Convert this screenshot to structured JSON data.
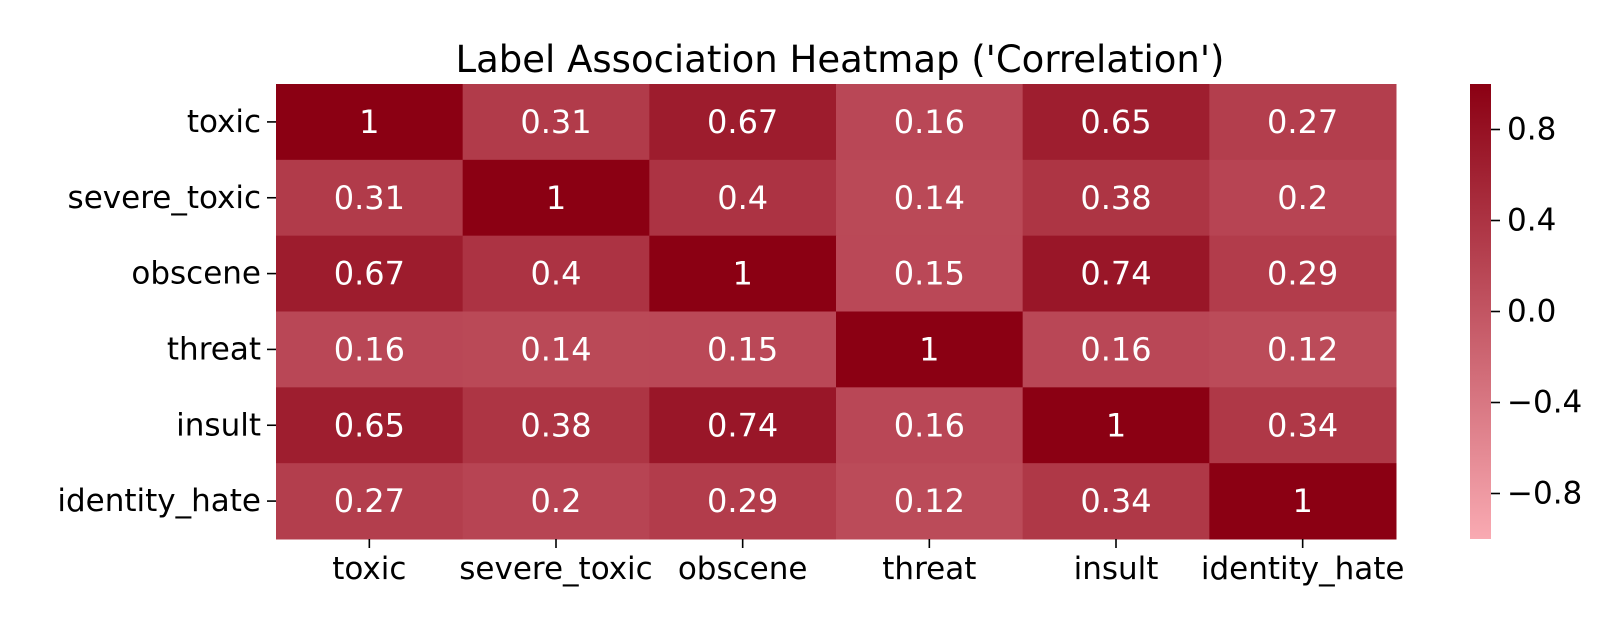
{
  "chart_data": {
    "type": "heatmap",
    "title": "Label Association Heatmap ('Correlation')",
    "xlabel": "",
    "ylabel": "",
    "x_categories": [
      "toxic",
      "severe_toxic",
      "obscene",
      "threat",
      "insult",
      "identity_hate"
    ],
    "y_categories": [
      "toxic",
      "severe_toxic",
      "obscene",
      "threat",
      "insult",
      "identity_hate"
    ],
    "values": [
      [
        1,
        0.31,
        0.67,
        0.16,
        0.65,
        0.27
      ],
      [
        0.31,
        1,
        0.4,
        0.14,
        0.38,
        0.2
      ],
      [
        0.67,
        0.4,
        1,
        0.15,
        0.74,
        0.29
      ],
      [
        0.16,
        0.14,
        0.15,
        1,
        0.16,
        0.12
      ],
      [
        0.65,
        0.38,
        0.74,
        0.16,
        1,
        0.34
      ],
      [
        0.27,
        0.2,
        0.29,
        0.12,
        0.34,
        1
      ]
    ],
    "cell_labels": [
      [
        "1",
        "0.31",
        "0.67",
        "0.16",
        "0.65",
        "0.27"
      ],
      [
        "0.31",
        "1",
        "0.4",
        "0.14",
        "0.38",
        "0.2"
      ],
      [
        "0.67",
        "0.4",
        "1",
        "0.15",
        "0.74",
        "0.29"
      ],
      [
        "0.16",
        "0.14",
        "0.15",
        "1",
        "0.16",
        "0.12"
      ],
      [
        "0.65",
        "0.38",
        "0.74",
        "0.16",
        "1",
        "0.34"
      ],
      [
        "0.27",
        "0.2",
        "0.29",
        "0.12",
        "0.34",
        "1"
      ]
    ],
    "annotation_color": "#ffffff",
    "colorbar": {
      "vmin": -1,
      "vmax": 1,
      "ticks": [
        0.8,
        0.4,
        0.0,
        -0.4,
        -0.8
      ],
      "tick_labels": [
        "0.8",
        "0.4",
        "0.0",
        "−0.4",
        "−0.8"
      ],
      "color_low": "#F9AAB2",
      "color_high": "#8B0013"
    },
    "grid": false,
    "legend": "colorbar-right"
  }
}
